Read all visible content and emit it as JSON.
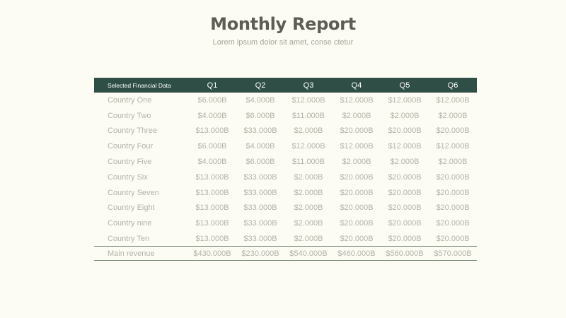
{
  "report": {
    "title": "Monthly Report",
    "subtitle": "Lorem ipsum dolor sit amet, conse ctetur"
  },
  "table": {
    "columns": [
      "Selected Financial Data",
      "Q1",
      "Q2",
      "Q3",
      "Q4",
      "Q5",
      "Q6"
    ],
    "rows": [
      [
        "Country One",
        "$6.000B",
        "$4.000B",
        "$12.000B",
        "$12.000B",
        "$12.000B",
        "$12.000B"
      ],
      [
        "Country Two",
        "$4.000B",
        "$6.000B",
        "$11.000B",
        "$2.000B",
        "$2.000B",
        "$2.000B"
      ],
      [
        "Country Three",
        "$13.000B",
        "$33.000B",
        "$2.000B",
        "$20.000B",
        "$20.000B",
        "$20.000B"
      ],
      [
        "Country Four",
        "$6.000B",
        "$4.000B",
        "$12.000B",
        "$12.000B",
        "$12.000B",
        "$12.000B"
      ],
      [
        "Country Five",
        "$4.000B",
        "$6.000B",
        "$11.000B",
        "$2.000B",
        "$2.000B",
        "$2.000B"
      ],
      [
        "Country Six",
        "$13.000B",
        "$33.000B",
        "$2.000B",
        "$20.000B",
        "$20.000B",
        "$20.000B"
      ],
      [
        "Country Seven",
        "$13.000B",
        "$33.000B",
        "$2.000B",
        "$20.000B",
        "$20.000B",
        "$20.000B"
      ],
      [
        "Country Eight",
        "$13.000B",
        "$33.000B",
        "$2.000B",
        "$20.000B",
        "$20.000B",
        "$20.000B"
      ],
      [
        "Country nine",
        "$13.000B",
        "$33.000B",
        "$2.000B",
        "$20.000B",
        "$20.000B",
        "$20.000B"
      ],
      [
        "Country Ten",
        "$13.000B",
        "$33.000B",
        "$2.000B",
        "$20.000B",
        "$20.000B",
        "$20.000B"
      ]
    ],
    "footer": [
      "Main revenue",
      "$430.000B",
      "$230.000B",
      "$540.000B",
      "$460.000B",
      "$560.000B",
      "$570.000B"
    ]
  },
  "colors": {
    "header_bg": "#2f4f46",
    "background": "#fcfcf4",
    "title": "#5d5d55",
    "cell_text": "#b3b3a8",
    "footer_rule": "#6e8a70"
  }
}
